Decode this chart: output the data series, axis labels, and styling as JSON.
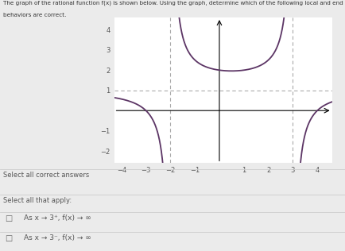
{
  "xlim": [
    -4.3,
    4.6
  ],
  "ylim": [
    -2.6,
    4.6
  ],
  "xticks": [
    -4,
    -3,
    -2,
    -1,
    1,
    2,
    3,
    4
  ],
  "yticks": [
    -2,
    -1,
    1,
    2,
    3,
    4
  ],
  "va_x1": -2,
  "va_x2": 3,
  "ha_y": 1,
  "curve_color": "#5c3565",
  "asymptote_color": "#aaaaaa",
  "ha_color": "#aaaaaa",
  "background_color": "#ebebeb",
  "text_color": "#555555",
  "select_all_text": "Select all correct answers",
  "select_that_text": "Select all that apply:",
  "answer1": "As x → 3⁺, f(x) → ∞",
  "answer2": "As x → 3⁻, f(x) → ∞",
  "figsize": [
    4.35,
    3.16
  ],
  "dpi": 100,
  "title_line1": "The graph of the rational function f(x) is shown below. Using the graph, determine which of the following local and end",
  "title_line2": "behaviors are correct."
}
